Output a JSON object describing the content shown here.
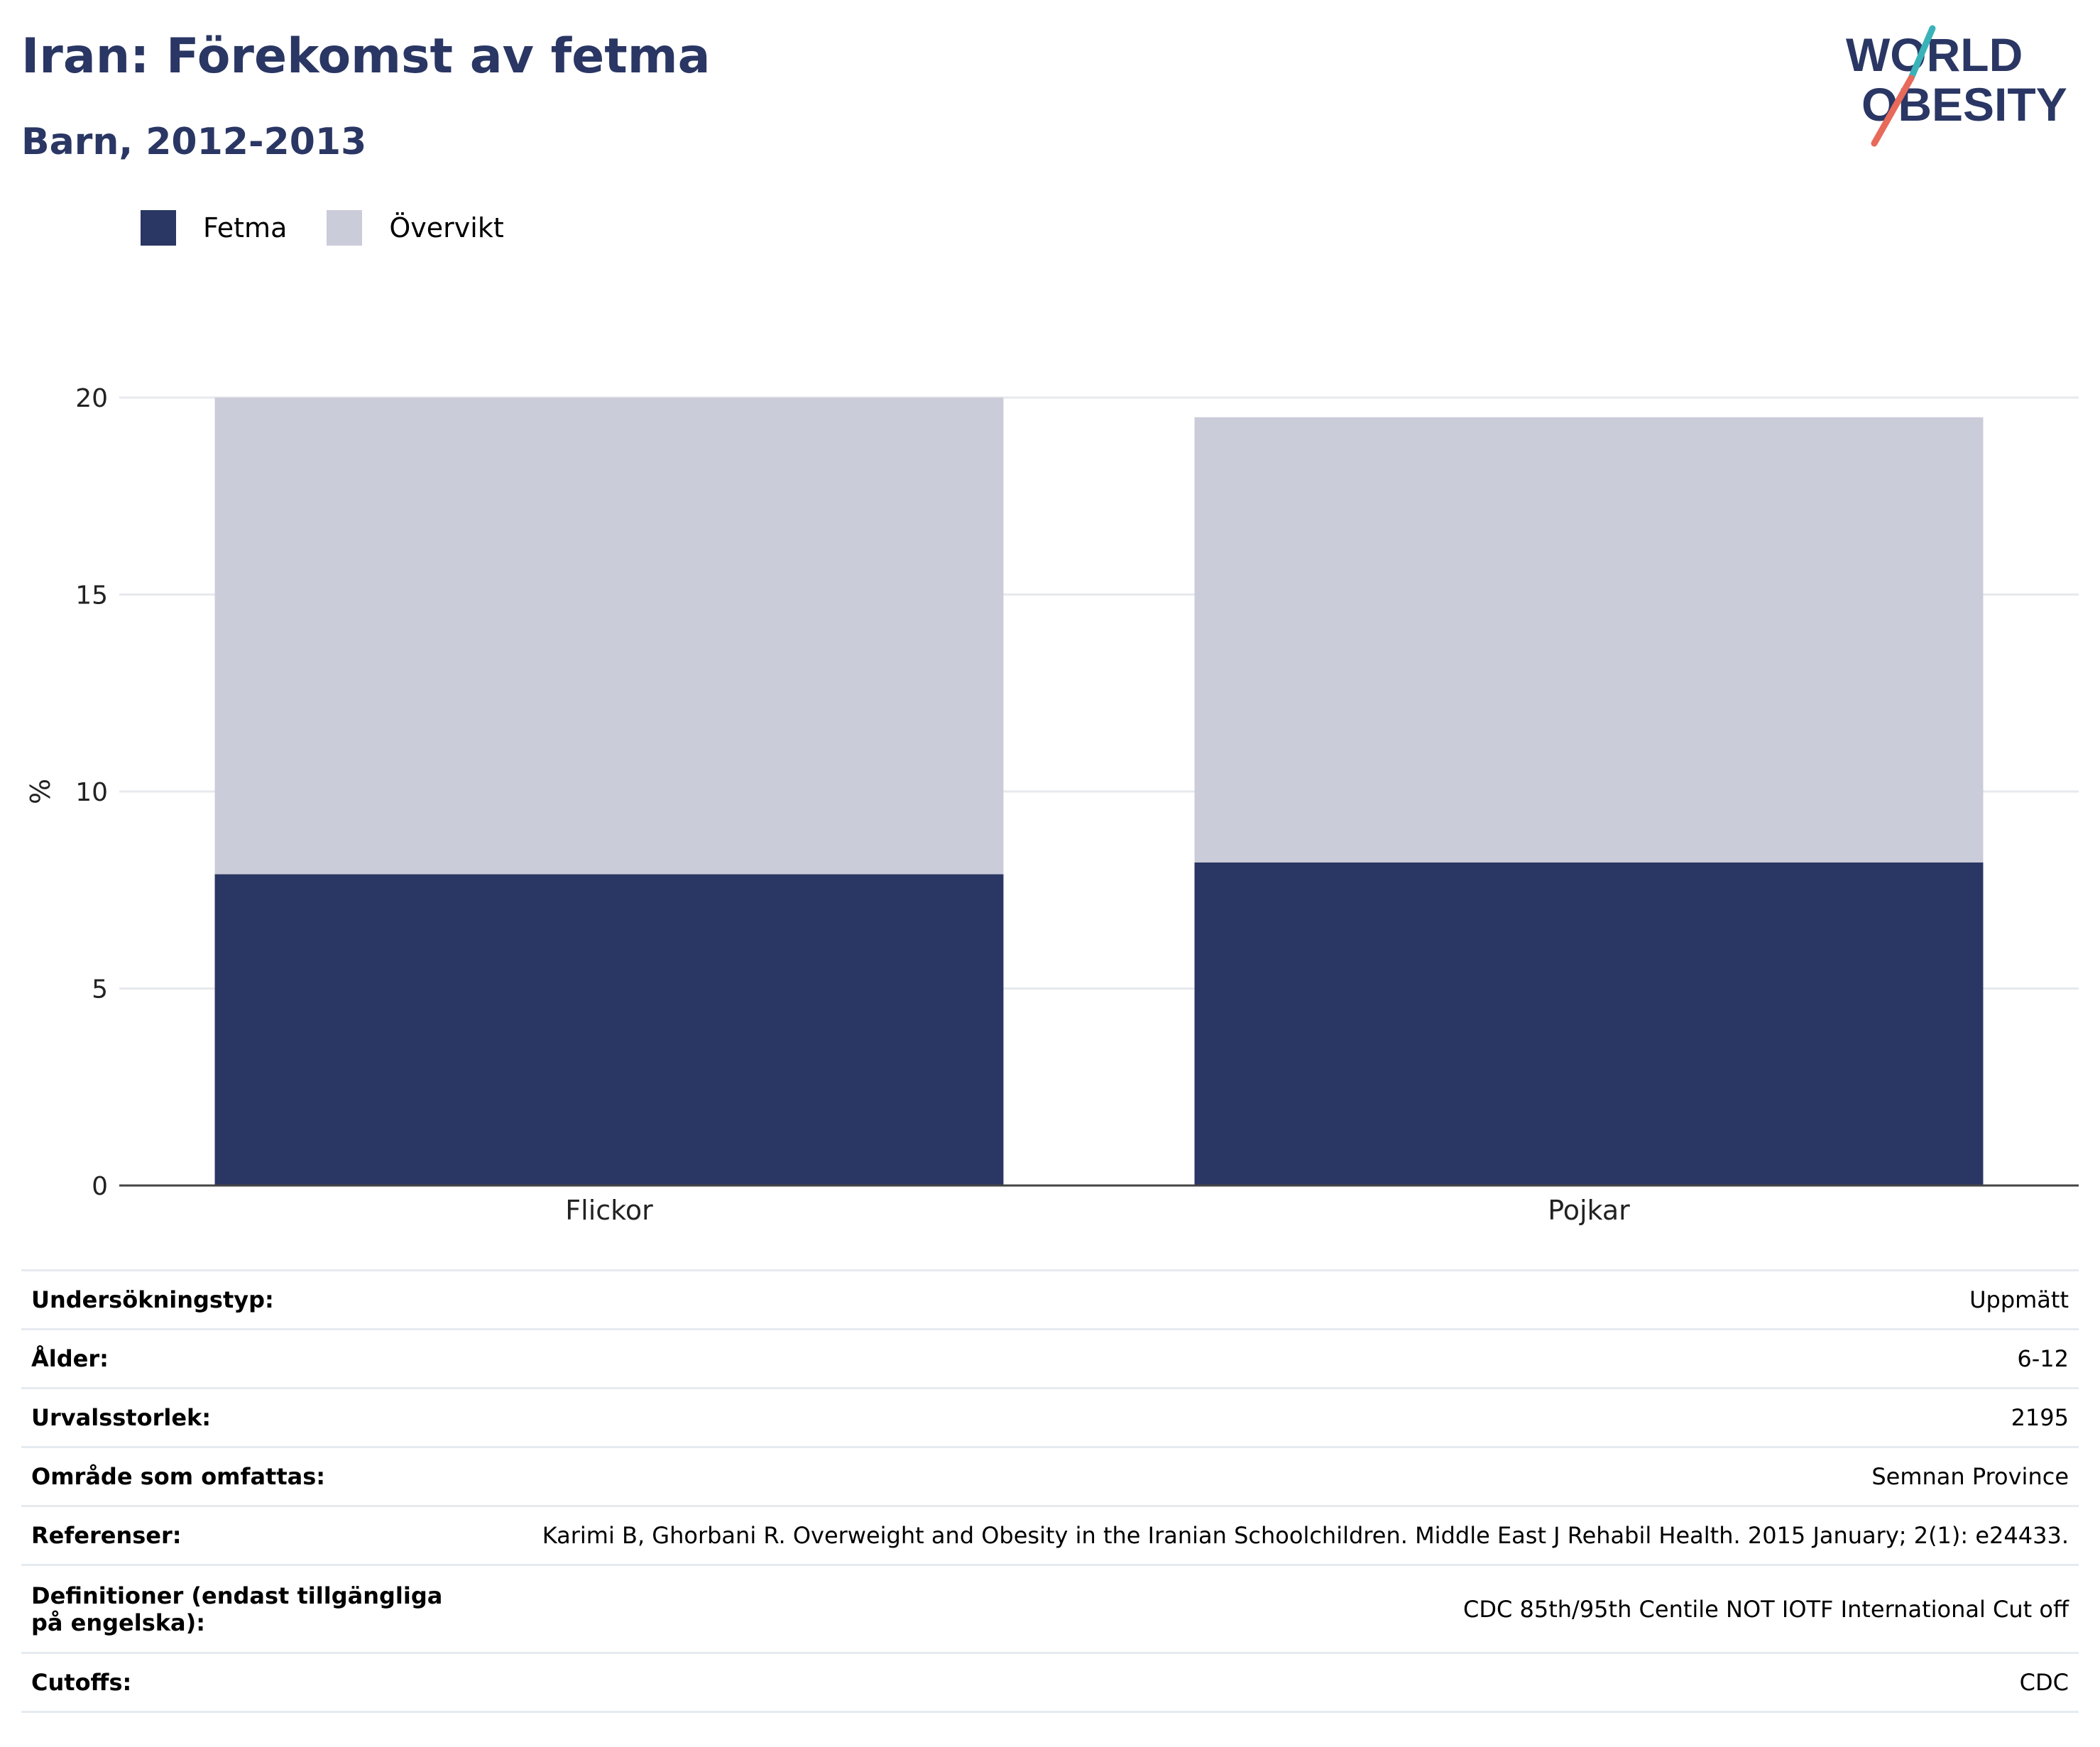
{
  "title": "Iran: Förekomst av fetma",
  "subtitle": "Barn, 2012-2013",
  "logo": {
    "line1": "WORLD",
    "line2": "OBESITY"
  },
  "legend": [
    {
      "label": "Fetma",
      "color": "#2a3663"
    },
    {
      "label": "Övervikt",
      "color": "#cbccd9"
    }
  ],
  "chart_data": {
    "type": "bar",
    "stacked": true,
    "categories": [
      "Flickor",
      "Pojkar"
    ],
    "series": [
      {
        "name": "Fetma",
        "values": [
          7.9,
          8.2
        ],
        "color": "#2a3663"
      },
      {
        "name": "Övervikt",
        "values": [
          12.1,
          11.3
        ],
        "color": "#cbccd9"
      }
    ],
    "ylabel": "%",
    "ylim": [
      0,
      20
    ],
    "yticks": [
      0,
      5,
      10,
      15,
      20
    ],
    "grid": true,
    "legend_position": "top-left"
  },
  "info": [
    {
      "label": "Undersökningstyp:",
      "value": "Uppmätt"
    },
    {
      "label": "Ålder:",
      "value": "6-12"
    },
    {
      "label": "Urvalsstorlek:",
      "value": "2195"
    },
    {
      "label": "Område som omfattas:",
      "value": "Semnan Province"
    },
    {
      "label": "Referenser:",
      "value": "Karimi B, Ghorbani R. Overweight and Obesity in the Iranian Schoolchildren. Middle East J Rehabil Health. 2015 January; 2(1): e24433."
    },
    {
      "label": "Definitioner (endast tillgängliga på engelska):",
      "value": "CDC 85th/95th Centile NOT IOTF International Cut off"
    },
    {
      "label": "Cutoffs:",
      "value": "CDC"
    }
  ]
}
